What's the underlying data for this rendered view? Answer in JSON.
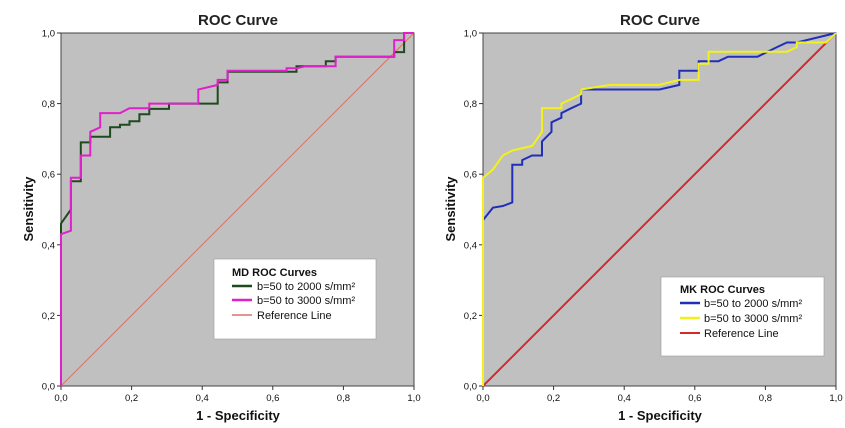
{
  "chart_data": [
    {
      "type": "line",
      "title": "ROC Curve",
      "xlabel": "1 - Specificity",
      "ylabel": "Sensitivity",
      "xlim": [
        0,
        1
      ],
      "ylim": [
        0,
        1
      ],
      "xticks": [
        "0,0",
        "0,2",
        "0,4",
        "0,6",
        "0,8",
        "1,0"
      ],
      "yticks": [
        "0,0",
        "0,2",
        "0,4",
        "0,6",
        "0,8",
        "1,0"
      ],
      "legend_title": "MD ROC Curves",
      "legend_position": "lower-right",
      "series": [
        {
          "name": "b=50 to 2000 s/mm²",
          "color": "#1f4a1f",
          "points": [
            [
              0,
              0
            ],
            [
              0,
              0.46
            ],
            [
              0.028,
              0.5
            ],
            [
              0.028,
              0.58
            ],
            [
              0.056,
              0.58
            ],
            [
              0.056,
              0.69
            ],
            [
              0.083,
              0.69
            ],
            [
              0.083,
              0.706
            ],
            [
              0.139,
              0.706
            ],
            [
              0.139,
              0.733
            ],
            [
              0.167,
              0.733
            ],
            [
              0.167,
              0.74
            ],
            [
              0.194,
              0.74
            ],
            [
              0.194,
              0.75
            ],
            [
              0.222,
              0.75
            ],
            [
              0.222,
              0.77
            ],
            [
              0.25,
              0.77
            ],
            [
              0.25,
              0.785
            ],
            [
              0.306,
              0.785
            ],
            [
              0.306,
              0.8
            ],
            [
              0.444,
              0.8
            ],
            [
              0.444,
              0.86
            ],
            [
              0.472,
              0.86
            ],
            [
              0.472,
              0.89
            ],
            [
              0.667,
              0.89
            ],
            [
              0.667,
              0.906
            ],
            [
              0.75,
              0.906
            ],
            [
              0.75,
              0.92
            ],
            [
              0.778,
              0.92
            ],
            [
              0.778,
              0.933
            ],
            [
              0.944,
              0.933
            ],
            [
              0.944,
              0.946
            ],
            [
              0.972,
              0.946
            ],
            [
              0.972,
              1.0
            ],
            [
              1.0,
              1.0
            ]
          ]
        },
        {
          "name": "b=50 to 3000 s/mm²",
          "color": "#e020c8",
          "points": [
            [
              0,
              0
            ],
            [
              0,
              0.43
            ],
            [
              0.028,
              0.44
            ],
            [
              0.028,
              0.59
            ],
            [
              0.056,
              0.59
            ],
            [
              0.056,
              0.653
            ],
            [
              0.083,
              0.653
            ],
            [
              0.083,
              0.72
            ],
            [
              0.111,
              0.733
            ],
            [
              0.111,
              0.773
            ],
            [
              0.167,
              0.773
            ],
            [
              0.194,
              0.787
            ],
            [
              0.25,
              0.787
            ],
            [
              0.25,
              0.8
            ],
            [
              0.389,
              0.8
            ],
            [
              0.389,
              0.84
            ],
            [
              0.444,
              0.853
            ],
            [
              0.444,
              0.867
            ],
            [
              0.472,
              0.867
            ],
            [
              0.472,
              0.893
            ],
            [
              0.639,
              0.893
            ],
            [
              0.639,
              0.9
            ],
            [
              0.667,
              0.9
            ],
            [
              0.694,
              0.906
            ],
            [
              0.778,
              0.906
            ],
            [
              0.778,
              0.933
            ],
            [
              0.944,
              0.933
            ],
            [
              0.944,
              0.98
            ],
            [
              0.972,
              0.98
            ],
            [
              0.972,
              1.0
            ],
            [
              1.0,
              1.0
            ]
          ]
        },
        {
          "name": "Reference Line",
          "color": "#d9746a",
          "points": [
            [
              0,
              0
            ],
            [
              1,
              1
            ]
          ]
        }
      ]
    },
    {
      "type": "line",
      "title": "ROC Curve",
      "xlabel": "1 - Specificity",
      "ylabel": "Sensitivity",
      "xlim": [
        0,
        1
      ],
      "ylim": [
        0,
        1
      ],
      "xticks": [
        "0,0",
        "0,2",
        "0,4",
        "0,6",
        "0,8",
        "1,0"
      ],
      "yticks": [
        "0,0",
        "0,2",
        "0,4",
        "0,6",
        "0,8",
        "1,0"
      ],
      "legend_title": "MK ROC Curves",
      "legend_position": "lower-right",
      "series": [
        {
          "name": "b=50 to 2000 s/mm²",
          "color": "#1f2fb8",
          "points": [
            [
              0,
              0
            ],
            [
              0,
              0.47
            ],
            [
              0.028,
              0.505
            ],
            [
              0.056,
              0.51
            ],
            [
              0.083,
              0.52
            ],
            [
              0.083,
              0.627
            ],
            [
              0.111,
              0.627
            ],
            [
              0.111,
              0.64
            ],
            [
              0.139,
              0.653
            ],
            [
              0.167,
              0.653
            ],
            [
              0.167,
              0.693
            ],
            [
              0.194,
              0.72
            ],
            [
              0.194,
              0.747
            ],
            [
              0.222,
              0.76
            ],
            [
              0.222,
              0.773
            ],
            [
              0.25,
              0.787
            ],
            [
              0.278,
              0.8
            ],
            [
              0.278,
              0.84
            ],
            [
              0.5,
              0.84
            ],
            [
              0.556,
              0.853
            ],
            [
              0.556,
              0.893
            ],
            [
              0.611,
              0.893
            ],
            [
              0.611,
              0.92
            ],
            [
              0.667,
              0.92
            ],
            [
              0.694,
              0.933
            ],
            [
              0.778,
              0.933
            ],
            [
              0.833,
              0.96
            ],
            [
              0.861,
              0.973
            ],
            [
              0.889,
              0.973
            ],
            [
              1.0,
              1.0
            ]
          ]
        },
        {
          "name": "b=50 to 3000 s/mm²",
          "color": "#f2f21a",
          "points": [
            [
              0,
              0
            ],
            [
              0,
              0.59
            ],
            [
              0.028,
              0.613
            ],
            [
              0.056,
              0.653
            ],
            [
              0.083,
              0.667
            ],
            [
              0.139,
              0.68
            ],
            [
              0.167,
              0.72
            ],
            [
              0.167,
              0.787
            ],
            [
              0.222,
              0.787
            ],
            [
              0.222,
              0.8
            ],
            [
              0.25,
              0.813
            ],
            [
              0.278,
              0.827
            ],
            [
              0.278,
              0.84
            ],
            [
              0.361,
              0.853
            ],
            [
              0.5,
              0.853
            ],
            [
              0.556,
              0.867
            ],
            [
              0.611,
              0.867
            ],
            [
              0.611,
              0.913
            ],
            [
              0.639,
              0.913
            ],
            [
              0.639,
              0.947
            ],
            [
              0.722,
              0.947
            ],
            [
              0.861,
              0.947
            ],
            [
              0.889,
              0.96
            ],
            [
              0.889,
              0.973
            ],
            [
              0.944,
              0.973
            ],
            [
              0.972,
              0.973
            ],
            [
              1.0,
              1.0
            ]
          ]
        },
        {
          "name": "Reference Line",
          "color": "#d42a2a",
          "points": [
            [
              0,
              0
            ],
            [
              1,
              1
            ]
          ]
        }
      ]
    }
  ]
}
